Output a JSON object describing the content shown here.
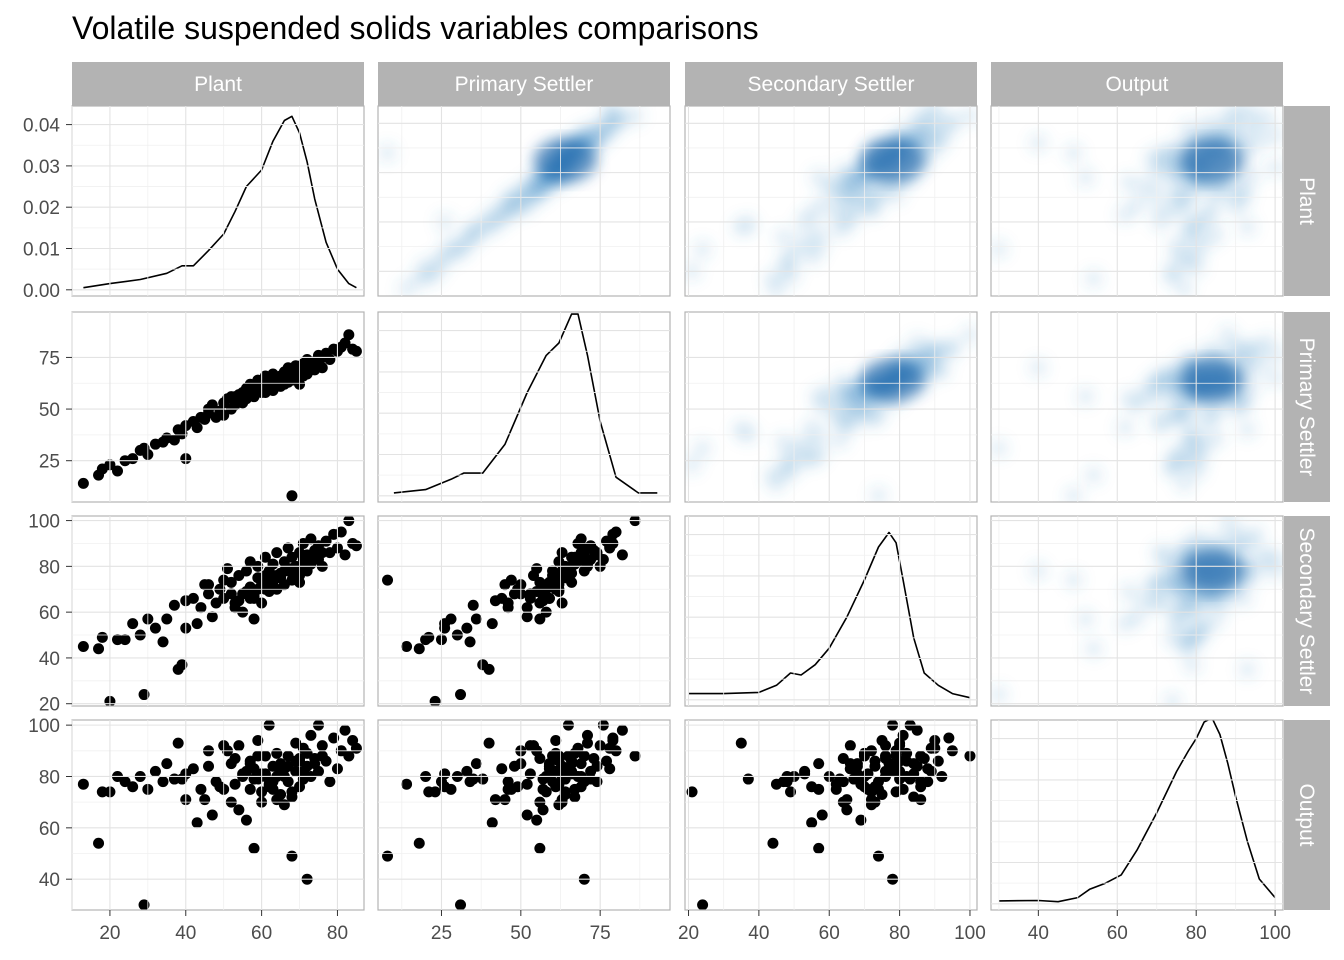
{
  "chart_data": {
    "type": "scatter",
    "title": "Volatile suspended solids variables comparisons",
    "variables": [
      "Plant",
      "Primary Settler",
      "Secondary Settler",
      "Output"
    ],
    "layout": "scatterplot-matrix",
    "lower_panels": "scatter points",
    "diagonal_panels": "density curve",
    "upper_panels": "2D density heatmap",
    "density_palette": [
      "#ffffff",
      "#deebf7",
      "#9ecae1",
      "#4292c6",
      "#08519c"
    ],
    "grid": true,
    "axes": {
      "Plant": {
        "range": [
          10,
          87
        ],
        "ticks": [
          20,
          40,
          60,
          80
        ]
      },
      "Primary Settler": {
        "range": [
          5,
          97
        ],
        "ticks": [
          25,
          50,
          75
        ]
      },
      "Secondary Settler": {
        "range": [
          19,
          102
        ],
        "ticks": [
          20,
          40,
          60,
          80,
          100
        ]
      },
      "Output": {
        "range": [
          28,
          102
        ],
        "ticks": [
          40,
          60,
          80,
          100
        ]
      }
    },
    "density_axis": {
      "range": [
        -0.0015,
        0.0445
      ],
      "ticks": [
        "0.00",
        "0.01",
        "0.02",
        "0.03",
        "0.04"
      ],
      "tick_values": [
        0,
        0.01,
        0.02,
        0.03,
        0.04
      ]
    },
    "densities": {
      "Plant": {
        "x": [
          13,
          20,
          28,
          35,
          39,
          42,
          46,
          50,
          53,
          56,
          60,
          63,
          66,
          68,
          70,
          72,
          74,
          77,
          80,
          83,
          85
        ],
        "y": [
          0.0005,
          0.0015,
          0.0025,
          0.004,
          0.0058,
          0.0058,
          0.0095,
          0.0135,
          0.019,
          0.025,
          0.029,
          0.036,
          0.041,
          0.042,
          0.038,
          0.031,
          0.022,
          0.0115,
          0.005,
          0.0015,
          0.0005
        ]
      },
      "Primary Settler": {
        "x": [
          10,
          20,
          28,
          32,
          38,
          45,
          52,
          58,
          62,
          66,
          68,
          71,
          75,
          80,
          87,
          93
        ],
        "y": [
          0.0007,
          0.0015,
          0.004,
          0.0055,
          0.0055,
          0.0125,
          0.025,
          0.034,
          0.037,
          0.044,
          0.044,
          0.034,
          0.018,
          0.0045,
          0.0007,
          0.0007
        ]
      },
      "Secondary Settler": {
        "x": [
          20,
          30,
          40,
          45,
          49,
          52,
          56,
          60,
          65,
          70,
          74,
          77,
          79,
          81,
          84,
          87,
          91,
          95,
          100
        ],
        "y": [
          0.0015,
          0.0015,
          0.0018,
          0.0035,
          0.0065,
          0.006,
          0.0085,
          0.0125,
          0.02,
          0.029,
          0.037,
          0.0405,
          0.038,
          0.029,
          0.015,
          0.0065,
          0.0035,
          0.0015,
          0.0005
        ]
      },
      "Output": {
        "x": [
          30,
          40,
          45,
          50,
          53,
          57,
          61,
          65,
          70,
          75,
          78,
          80,
          82,
          84,
          86,
          88,
          90,
          93,
          96,
          100
        ],
        "y": [
          0.0007,
          0.0008,
          0.0005,
          0.0015,
          0.0035,
          0.005,
          0.007,
          0.013,
          0.022,
          0.032,
          0.037,
          0.04,
          0.044,
          0.045,
          0.041,
          0.034,
          0.026,
          0.015,
          0.006,
          0.0015
        ]
      }
    },
    "points": [
      [
        13,
        14,
        45,
        77
      ],
      [
        17,
        18,
        44,
        54
      ],
      [
        18,
        21,
        49,
        74
      ],
      [
        20,
        23,
        21,
        74
      ],
      [
        22,
        20,
        48,
        80
      ],
      [
        24,
        25,
        48,
        78
      ],
      [
        26,
        26,
        55,
        76
      ],
      [
        28,
        30,
        50,
        80
      ],
      [
        29,
        31,
        24,
        30
      ],
      [
        30,
        28,
        57,
        75
      ],
      [
        32,
        33,
        53,
        82
      ],
      [
        34,
        34,
        47,
        78
      ],
      [
        35,
        36,
        57,
        85
      ],
      [
        37,
        35,
        63,
        79
      ],
      [
        38,
        40,
        35,
        93
      ],
      [
        39,
        38,
        37,
        79
      ],
      [
        40,
        26,
        53,
        81
      ],
      [
        40,
        42,
        65,
        71
      ],
      [
        42,
        44,
        66,
        83
      ],
      [
        43,
        41,
        55,
        62
      ],
      [
        44,
        46,
        62,
        75
      ],
      [
        45,
        45,
        72,
        71
      ],
      [
        46,
        48,
        68,
        84
      ],
      [
        46,
        50,
        72,
        90
      ],
      [
        47,
        52,
        58,
        65
      ],
      [
        48,
        46,
        64,
        78
      ],
      [
        49,
        49,
        70,
        76
      ],
      [
        50,
        53,
        66,
        92
      ],
      [
        50,
        47,
        74,
        75
      ],
      [
        51,
        55,
        79,
        90
      ],
      [
        52,
        50,
        68,
        85
      ],
      [
        52,
        56,
        73,
        70
      ],
      [
        53,
        52,
        62,
        77
      ],
      [
        54,
        57,
        65,
        67
      ],
      [
        54,
        54,
        76,
        92
      ],
      [
        55,
        58,
        60,
        80
      ],
      [
        56,
        55,
        69,
        63
      ],
      [
        56,
        60,
        78,
        82
      ],
      [
        57,
        57,
        71,
        75
      ],
      [
        57,
        62,
        82,
        86
      ],
      [
        58,
        59,
        66,
        83
      ],
      [
        58,
        56,
        57,
        52
      ],
      [
        59,
        61,
        75,
        94
      ],
      [
        59,
        64,
        80,
        79
      ],
      [
        60,
        58,
        72,
        74
      ],
      [
        60,
        63,
        64,
        70
      ],
      [
        61,
        60,
        76,
        88
      ],
      [
        61,
        66,
        84,
        81
      ],
      [
        62,
        62,
        69,
        77
      ],
      [
        62,
        65,
        78,
        100
      ],
      [
        63,
        59,
        73,
        84
      ],
      [
        63,
        67,
        81,
        75
      ],
      [
        64,
        63,
        86,
        71
      ],
      [
        64,
        61,
        70,
        89
      ],
      [
        65,
        66,
        77,
        85
      ],
      [
        65,
        64,
        75,
        73
      ],
      [
        66,
        68,
        82,
        80
      ],
      [
        66,
        62,
        72,
        69
      ],
      [
        67,
        65,
        79,
        88
      ],
      [
        67,
        70,
        88,
        78
      ],
      [
        68,
        8,
        74,
        49
      ],
      [
        68,
        67,
        84,
        72
      ],
      [
        69,
        64,
        77,
        82
      ],
      [
        69,
        71,
        80,
        93
      ],
      [
        70,
        69,
        86,
        76
      ],
      [
        70,
        66,
        73,
        86
      ],
      [
        71,
        72,
        83,
        79
      ],
      [
        71,
        68,
        90,
        91
      ],
      [
        72,
        70,
        78,
        40
      ],
      [
        72,
        74,
        85,
        84
      ],
      [
        73,
        71,
        81,
        96
      ],
      [
        73,
        69,
        92,
        80
      ],
      [
        74,
        73,
        87,
        87
      ],
      [
        75,
        76,
        83,
        100
      ],
      [
        75,
        72,
        89,
        82
      ],
      [
        76,
        75,
        80,
        92
      ],
      [
        77,
        77,
        91,
        86
      ],
      [
        78,
        74,
        86,
        78
      ],
      [
        79,
        79,
        94,
        95
      ],
      [
        80,
        78,
        88,
        83
      ],
      [
        81,
        80,
        95,
        90
      ],
      [
        82,
        82,
        85,
        98
      ],
      [
        83,
        86,
        100,
        88
      ],
      [
        84,
        79,
        90,
        94
      ],
      [
        85,
        78,
        89,
        91
      ],
      [
        61,
        58,
        70,
        80
      ],
      [
        63,
        60,
        74,
        78
      ],
      [
        65,
        61,
        76,
        82
      ],
      [
        67,
        63,
        78,
        84
      ],
      [
        69,
        66,
        80,
        86
      ],
      [
        58,
        57,
        67,
        79
      ],
      [
        60,
        59,
        71,
        81
      ],
      [
        62,
        61,
        73,
        76
      ],
      [
        64,
        63,
        76,
        80
      ],
      [
        66,
        65,
        78,
        83
      ],
      [
        57,
        59,
        66,
        85
      ],
      [
        59,
        62,
        70,
        88
      ],
      [
        55,
        53,
        68,
        81
      ],
      [
        53,
        56,
        64,
        87
      ],
      [
        68,
        64,
        79,
        74
      ],
      [
        70,
        62,
        76,
        87
      ],
      [
        72,
        67,
        82,
        89
      ],
      [
        74,
        69,
        84,
        85
      ],
      [
        71,
        66,
        80,
        82
      ],
      [
        76,
        70,
        86,
        88
      ]
    ]
  }
}
